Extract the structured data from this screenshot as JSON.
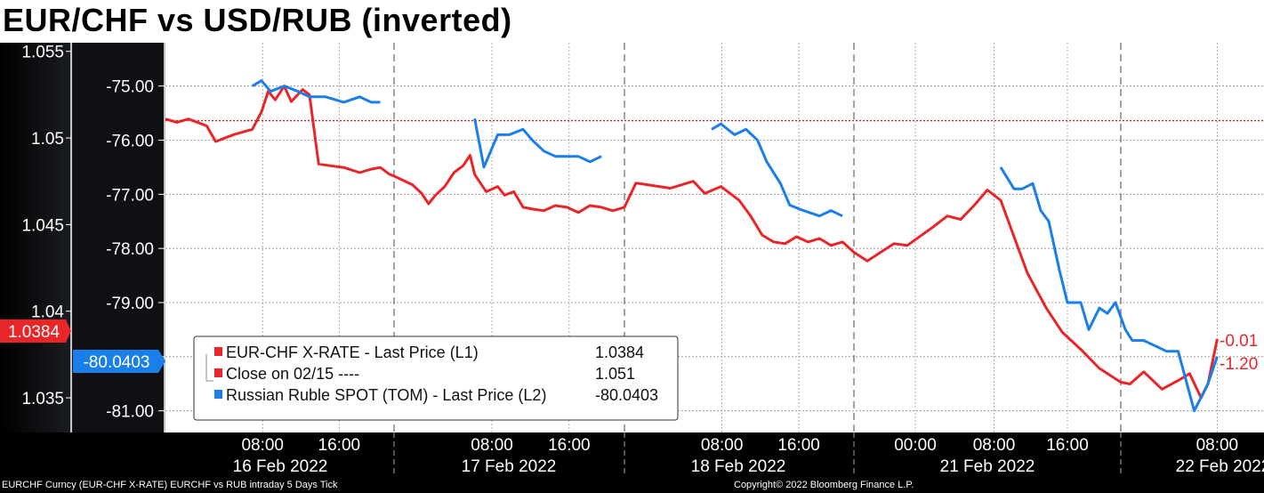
{
  "title": "EUR/CHF vs USD/RUB (inverted)",
  "footer": {
    "left": "EURCHF Curncy (EUR-CHF X-RATE) EURCHF vs RUB intraday 5 Days  Tick",
    "right": "Copyright© 2022 Bloomberg Finance L.P."
  },
  "chart_data": {
    "type": "line",
    "title": "EUR/CHF vs USD/RUB (inverted)",
    "x_axis": {
      "time_ticks": [
        {
          "day": 0,
          "label": "08:00"
        },
        {
          "day": 0,
          "label": "16:00"
        },
        {
          "day": 1,
          "label": "08:00"
        },
        {
          "day": 1,
          "label": "16:00"
        },
        {
          "day": 2,
          "label": "08:00"
        },
        {
          "day": 2,
          "label": "16:00"
        },
        {
          "day": 3,
          "label": "00:00"
        },
        {
          "day": 3,
          "label": "08:00"
        },
        {
          "day": 3,
          "label": "16:00"
        },
        {
          "day": 4,
          "label": "08:00"
        }
      ],
      "days": [
        "16 Feb 2022",
        "17 Feb 2022",
        "18 Feb 2022",
        "21 Feb 2022",
        "22 Feb 2022"
      ]
    },
    "left_axis": {
      "ticks": [
        "1.055",
        "1.05",
        "1.045",
        "1.04",
        "1.035"
      ],
      "range": [
        1.033,
        1.0555
      ]
    },
    "right_axis": {
      "ticks": [
        "-75.00",
        "-76.00",
        "-77.00",
        "-78.00",
        "-79.00",
        "-80.00",
        "-81.00"
      ],
      "range": [
        -81.4,
        -74.2
      ]
    },
    "close_line": {
      "value": 1.051
    },
    "badges": {
      "left": "1.0384",
      "right": "-80.0403"
    },
    "end_labels": [
      "-0.01",
      "-1.20"
    ],
    "legend": [
      {
        "name": "EUR-CHF X-RATE - Last Price (L1)",
        "value": "1.0384",
        "color": "#e8262a"
      },
      {
        "name": "Close on 02/15 ----",
        "value": "1.051",
        "color": "#e8262a"
      },
      {
        "name": "Russian Ruble SPOT (TOM) - Last Price (L2)",
        "value": "-80.0403",
        "color": "#1a7fe8"
      }
    ],
    "series": [
      {
        "name": "EUR-CHF X-RATE - Last Price (L1)",
        "axis": "left",
        "color": "#e8262a",
        "points": [
          [
            0,
            1.0511
          ],
          [
            0.05,
            1.0509
          ],
          [
            0.1,
            1.0511
          ],
          [
            0.18,
            1.0507
          ],
          [
            0.22,
            1.0498
          ],
          [
            0.3,
            1.0502
          ],
          [
            0.38,
            1.0505
          ],
          [
            0.42,
            1.0515
          ],
          [
            0.45,
            1.0527
          ],
          [
            0.48,
            1.0522
          ],
          [
            0.52,
            1.053
          ],
          [
            0.55,
            1.0521
          ],
          [
            0.6,
            1.0528
          ],
          [
            0.63,
            1.0525
          ],
          [
            0.67,
            1.0485
          ],
          [
            0.72,
            1.0484
          ],
          [
            0.78,
            1.0483
          ],
          [
            0.85,
            1.048
          ],
          [
            0.9,
            1.0482
          ],
          [
            0.94,
            1.0483
          ],
          [
            0.98,
            1.0479
          ],
          [
            1.0,
            1.0478
          ],
          [
            1.08,
            1.0473
          ],
          [
            1.12,
            1.0468
          ],
          [
            1.15,
            1.0462
          ],
          [
            1.18,
            1.0467
          ],
          [
            1.22,
            1.0472
          ],
          [
            1.26,
            1.048
          ],
          [
            1.3,
            1.0484
          ],
          [
            1.33,
            1.049
          ],
          [
            1.35,
            1.0479
          ],
          [
            1.4,
            1.0469
          ],
          [
            1.45,
            1.0472
          ],
          [
            1.48,
            1.0467
          ],
          [
            1.52,
            1.0469
          ],
          [
            1.56,
            1.046
          ],
          [
            1.6,
            1.0459
          ],
          [
            1.65,
            1.0458
          ],
          [
            1.7,
            1.0461
          ],
          [
            1.75,
            1.046
          ],
          [
            1.8,
            1.0457
          ],
          [
            1.85,
            1.0461
          ],
          [
            1.9,
            1.046
          ],
          [
            1.95,
            1.0458
          ],
          [
            2.0,
            1.046
          ],
          [
            2.05,
            1.0474
          ],
          [
            2.1,
            1.0473
          ],
          [
            2.2,
            1.0471
          ],
          [
            2.3,
            1.0475
          ],
          [
            2.35,
            1.0468
          ],
          [
            2.42,
            1.0472
          ],
          [
            2.5,
            1.0464
          ],
          [
            2.55,
            1.0455
          ],
          [
            2.6,
            1.0444
          ],
          [
            2.65,
            1.044
          ],
          [
            2.7,
            1.0439
          ],
          [
            2.75,
            1.0443
          ],
          [
            2.8,
            1.044
          ],
          [
            2.85,
            1.0442
          ],
          [
            2.9,
            1.0438
          ],
          [
            2.95,
            1.044
          ],
          [
            3.0,
            1.0434
          ],
          [
            3.05,
            1.0429
          ],
          [
            3.1,
            1.0434
          ],
          [
            3.15,
            1.0439
          ],
          [
            3.2,
            1.0438
          ],
          [
            3.3,
            1.0449
          ],
          [
            3.35,
            1.0455
          ],
          [
            3.4,
            1.0453
          ],
          [
            3.45,
            1.0461
          ],
          [
            3.5,
            1.047
          ],
          [
            3.55,
            1.0464
          ],
          [
            3.6,
            1.0443
          ],
          [
            3.65,
            1.0422
          ],
          [
            3.72,
            1.0402
          ],
          [
            3.78,
            1.0388
          ],
          [
            3.85,
            1.0378
          ],
          [
            3.92,
            1.0367
          ],
          [
            4.0,
            1.0359
          ],
          [
            4.04,
            1.0358
          ],
          [
            4.1,
            1.0365
          ],
          [
            4.18,
            1.0355
          ],
          [
            4.25,
            1.036
          ],
          [
            4.3,
            1.0364
          ],
          [
            4.35,
            1.035
          ],
          [
            4.38,
            1.0358
          ],
          [
            4.42,
            1.0384
          ]
        ]
      },
      {
        "name": "Russian Ruble SPOT (TOM) - Last Price (L2)",
        "axis": "right",
        "color": "#1a7fe8",
        "points": [
          [
            0.38,
            -75.0
          ],
          [
            0.42,
            -74.9
          ],
          [
            0.46,
            -75.1
          ],
          [
            0.52,
            -75.0
          ],
          [
            0.58,
            -75.1
          ],
          [
            0.63,
            -75.2
          ],
          [
            0.7,
            -75.2
          ],
          [
            0.78,
            -75.3
          ],
          [
            0.85,
            -75.2
          ],
          [
            0.9,
            -75.3
          ],
          [
            0.94,
            -75.3
          ],
          [
            1.35,
            -75.6
          ],
          [
            1.39,
            -76.5
          ],
          [
            1.45,
            -75.9
          ],
          [
            1.5,
            -75.9
          ],
          [
            1.56,
            -75.8
          ],
          [
            1.6,
            -76.0
          ],
          [
            1.65,
            -76.2
          ],
          [
            1.7,
            -76.3
          ],
          [
            1.75,
            -76.3
          ],
          [
            1.8,
            -76.3
          ],
          [
            1.85,
            -76.4
          ],
          [
            1.9,
            -76.3
          ],
          [
            2.38,
            -75.8
          ],
          [
            2.42,
            -75.7
          ],
          [
            2.48,
            -75.9
          ],
          [
            2.53,
            -75.8
          ],
          [
            2.58,
            -76.0
          ],
          [
            2.62,
            -76.4
          ],
          [
            2.68,
            -76.8
          ],
          [
            2.72,
            -77.2
          ],
          [
            2.78,
            -77.3
          ],
          [
            2.85,
            -77.4
          ],
          [
            2.9,
            -77.3
          ],
          [
            2.95,
            -77.4
          ],
          [
            3.55,
            -76.5
          ],
          [
            3.6,
            -76.9
          ],
          [
            3.63,
            -76.9
          ],
          [
            3.67,
            -76.8
          ],
          [
            3.7,
            -77.3
          ],
          [
            3.73,
            -77.5
          ],
          [
            3.77,
            -78.4
          ],
          [
            3.8,
            -79.0
          ],
          [
            3.85,
            -79.0
          ],
          [
            3.88,
            -79.5
          ],
          [
            3.92,
            -79.1
          ],
          [
            3.95,
            -79.2
          ],
          [
            3.98,
            -79.0
          ],
          [
            4.02,
            -79.5
          ],
          [
            4.05,
            -79.7
          ],
          [
            4.1,
            -79.7
          ],
          [
            4.15,
            -79.8
          ],
          [
            4.2,
            -79.9
          ],
          [
            4.25,
            -79.9
          ],
          [
            4.32,
            -81.0
          ],
          [
            4.38,
            -80.5
          ],
          [
            4.42,
            -80.0
          ]
        ]
      }
    ]
  }
}
